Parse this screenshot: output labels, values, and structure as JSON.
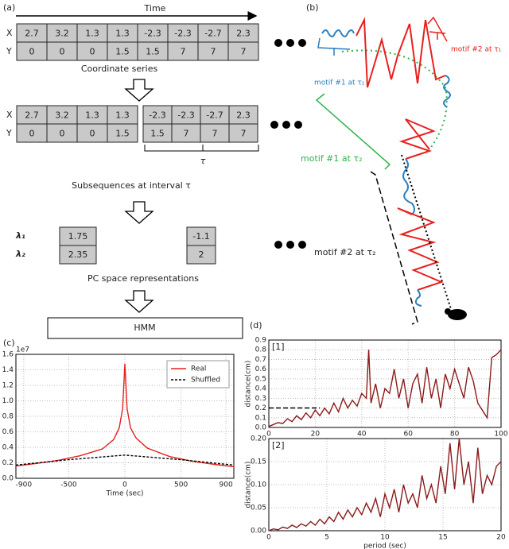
{
  "panel_labels": [
    "(a)",
    "(b)",
    "(c)",
    "(d)"
  ],
  "diagram": {
    "time_label": "Time",
    "row_labels": [
      "X",
      "Y"
    ],
    "coordinate_series": {
      "X": [
        2.7,
        3.2,
        1.3,
        1.3,
        -2.3,
        -2.3,
        -2.7,
        2.3
      ],
      "Y": [
        0,
        0,
        0,
        1.5,
        1.5,
        7,
        7,
        7
      ]
    },
    "caption1": "Coordinate series",
    "sub1": {
      "X": [
        2.7,
        3.2,
        1.3,
        1.3
      ],
      "Y": [
        0,
        0,
        0,
        1.5
      ]
    },
    "sub2": {
      "X": [
        -2.3,
        -2.3,
        -2.7,
        2.3
      ],
      "Y": [
        1.5,
        7,
        7,
        7
      ]
    },
    "tau": "τ",
    "caption2": "Subsequences at interval τ",
    "lambda_labels": [
      "λ₁",
      "λ₂"
    ],
    "pc_values": [
      [
        1.75,
        2.35
      ],
      [
        -1.1,
        2
      ]
    ],
    "caption3": "PC space representations",
    "hmm": "HMM"
  },
  "trajectory": {
    "labels": [
      "motif #2 at τ₁",
      "motif #1 at τ₁",
      "motif #1 at τ₂",
      "motif #2 at τ₂"
    ]
  },
  "chart_data": [
    {
      "type": "line",
      "xlabel": "Time (sec)",
      "y_offset_label": "1e7",
      "xlim": [
        -970,
        970
      ],
      "ylim": [
        0,
        16000000
      ],
      "xticks": [
        -900,
        -500,
        0,
        500,
        900
      ],
      "yticks": [
        {
          "value": 0,
          "label": "0.0"
        },
        {
          "value": 2000000,
          "label": "0.2"
        },
        {
          "value": 4000000,
          "label": "0.4"
        },
        {
          "value": 6000000,
          "label": "0.6"
        },
        {
          "value": 8000000,
          "label": "0.8"
        },
        {
          "value": 10000000,
          "label": "1.0"
        },
        {
          "value": 12000000,
          "label": "1.2"
        },
        {
          "value": 14000000,
          "label": "1.4"
        },
        {
          "value": 16000000,
          "label": "1.6"
        }
      ],
      "grid": true,
      "legend": "upper right",
      "series": [
        {
          "name": "Real",
          "color": "#e8201e",
          "dashed": false,
          "x": [
            -970,
            -800,
            -600,
            -400,
            -200,
            -100,
            -50,
            -20,
            0,
            20,
            50,
            100,
            200,
            400,
            600,
            800,
            970
          ],
          "values": [
            1600000,
            1900000,
            2300000,
            2900000,
            3800000,
            5000000,
            6500000,
            9000000,
            14800000,
            9000000,
            6500000,
            5200000,
            3900000,
            2800000,
            2200000,
            1800000,
            1500000
          ]
        },
        {
          "name": "Shuffled",
          "color": "#000000",
          "dashed": true,
          "x": [
            -970,
            -500,
            0,
            500,
            970
          ],
          "values": [
            1700000,
            2400000,
            3000000,
            2400000,
            1700000
          ]
        }
      ]
    },
    {
      "type": "line",
      "annotation": "[1]",
      "ylabel": "distance(cm)",
      "xlim": [
        0,
        100
      ],
      "ylim": [
        0,
        0.9
      ],
      "xticks": [
        0,
        20,
        40,
        60,
        80,
        100
      ],
      "yticks": [
        {
          "value": 0,
          "label": "0.0"
        },
        0.1,
        0.2,
        0.3,
        0.4,
        0.5,
        0.6,
        0.7,
        0.8,
        0.9
      ],
      "grid": true,
      "reference_line": {
        "x_end": 22,
        "y": 0.2
      },
      "series": [
        {
          "color": "#8b1a1a",
          "x": [
            0,
            2,
            4,
            6,
            8,
            10,
            12,
            14,
            16,
            18,
            20,
            22,
            24,
            26,
            28,
            30,
            32,
            34,
            36,
            38,
            40,
            42,
            43,
            44,
            46,
            48,
            50,
            52,
            54,
            56,
            58,
            60,
            62,
            64,
            66,
            68,
            70,
            72,
            74,
            76,
            78,
            80,
            82,
            84,
            86,
            88,
            90,
            94,
            96,
            98,
            100
          ],
          "values": [
            0.01,
            0.03,
            0.05,
            0.04,
            0.09,
            0.06,
            0.12,
            0.08,
            0.15,
            0.1,
            0.18,
            0.12,
            0.2,
            0.14,
            0.25,
            0.16,
            0.3,
            0.2,
            0.28,
            0.22,
            0.35,
            0.3,
            0.8,
            0.25,
            0.45,
            0.2,
            0.4,
            0.35,
            0.6,
            0.3,
            0.5,
            0.2,
            0.45,
            0.55,
            0.25,
            0.62,
            0.3,
            0.5,
            0.2,
            0.55,
            0.4,
            0.6,
            0.45,
            0.3,
            0.62,
            0.48,
            0.25,
            0.1,
            0.72,
            0.75,
            0.8
          ]
        }
      ]
    },
    {
      "type": "line",
      "annotation": "[2]",
      "ylabel": "distance(cm)",
      "xlabel": "period (sec)",
      "xlim": [
        0,
        20
      ],
      "ylim": [
        0,
        0.2
      ],
      "xticks": [
        0,
        5,
        10,
        15,
        20
      ],
      "yticks": [
        {
          "value": 0,
          "label": "0.00"
        },
        {
          "value": 0.05,
          "label": "0.05"
        },
        {
          "value": 0.1,
          "label": "0.10"
        },
        {
          "value": 0.15,
          "label": "0.15"
        },
        {
          "value": 0.2,
          "label": "0.20"
        }
      ],
      "grid": true,
      "series": [
        {
          "color": "#8b1a1a",
          "x": [
            0,
            0.4,
            0.8,
            1.2,
            1.6,
            2,
            2.4,
            2.8,
            3.2,
            3.6,
            4,
            4.4,
            4.8,
            5.2,
            5.6,
            6,
            6.4,
            6.8,
            7.2,
            7.6,
            8,
            8.4,
            8.8,
            9.2,
            9.6,
            10,
            10.4,
            10.8,
            11.2,
            11.6,
            12,
            12.4,
            12.8,
            13.2,
            13.6,
            14,
            14.4,
            14.8,
            15.2,
            15.6,
            16,
            16.4,
            16.8,
            17.2,
            17.6,
            18,
            18.4,
            18.8,
            19.2,
            19.6,
            20
          ],
          "values": [
            0.0,
            0.004,
            0.002,
            0.008,
            0.005,
            0.012,
            0.007,
            0.015,
            0.01,
            0.02,
            0.012,
            0.025,
            0.015,
            0.03,
            0.02,
            0.04,
            0.025,
            0.045,
            0.03,
            0.05,
            0.035,
            0.06,
            0.04,
            0.07,
            0.03,
            0.08,
            0.05,
            0.09,
            0.04,
            0.1,
            0.06,
            0.08,
            0.05,
            0.12,
            0.07,
            0.1,
            0.06,
            0.14,
            0.08,
            0.19,
            0.09,
            0.2,
            0.1,
            0.15,
            0.06,
            0.18,
            0.08,
            0.12,
            0.1,
            0.14,
            0.15
          ]
        }
      ]
    }
  ]
}
